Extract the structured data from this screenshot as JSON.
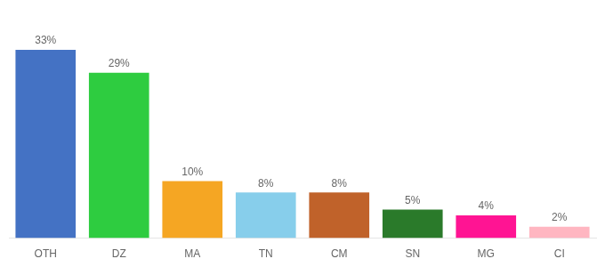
{
  "chart_data": {
    "type": "bar",
    "categories": [
      "OTH",
      "DZ",
      "MA",
      "TN",
      "CM",
      "SN",
      "MG",
      "CI"
    ],
    "values": [
      33,
      29,
      10,
      8,
      8,
      5,
      4,
      2
    ],
    "value_labels": [
      "33%",
      "29%",
      "10%",
      "8%",
      "8%",
      "5%",
      "4%",
      "2%"
    ],
    "colors": [
      "#4472c4",
      "#2ecc40",
      "#f5a623",
      "#87ceeb",
      "#c0622a",
      "#2a7a2a",
      "#ff1493",
      "#ffb6c1"
    ],
    "ylim": [
      0,
      38
    ],
    "grid": false,
    "data_labels": true,
    "tick_labels": "x"
  }
}
